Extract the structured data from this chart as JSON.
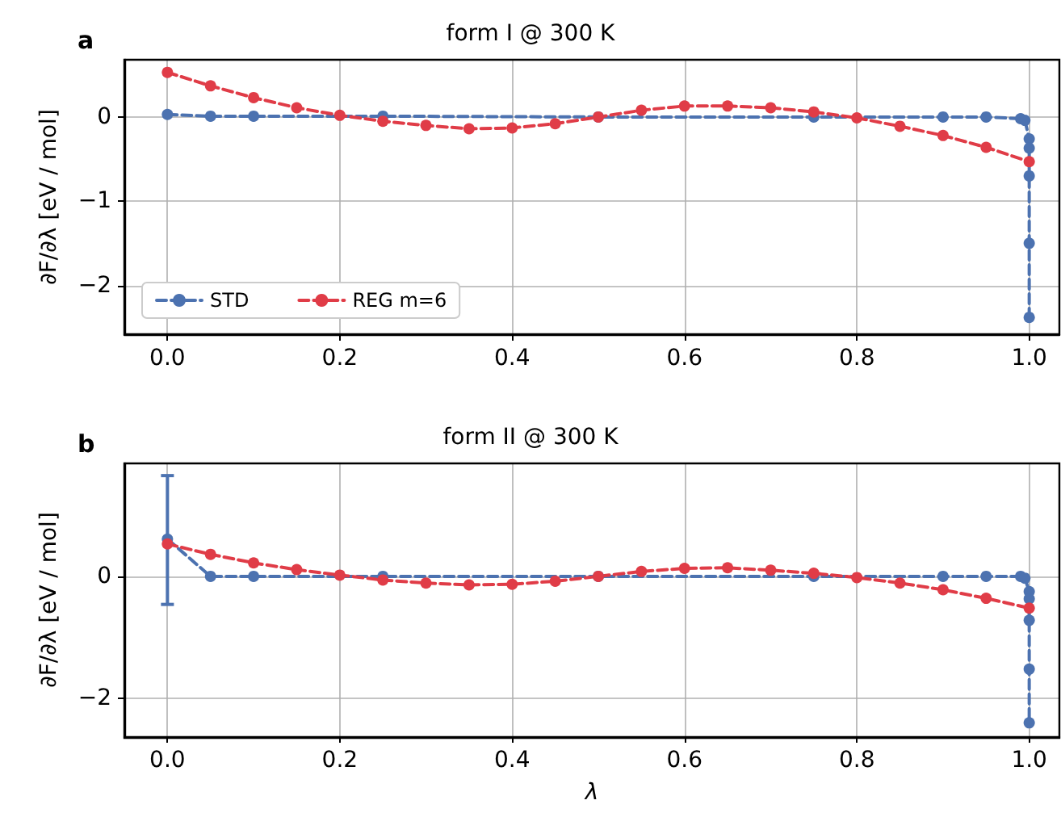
{
  "chart_data": [
    {
      "type": "line",
      "title": "form I @ 300 K",
      "ylabel": "∂F/∂λ [eV / mol]",
      "annotations": [
        "a"
      ],
      "xlim": [
        -0.05,
        1.035
      ],
      "ylim": [
        -2.58,
        0.68
      ],
      "xticks": [
        {
          "value": 0,
          "label": "0.0"
        },
        {
          "value": 0.2,
          "label": "0.2"
        },
        {
          "value": 0.4,
          "label": "0.4"
        },
        {
          "value": 0.6,
          "label": "0.6"
        },
        {
          "value": 0.8,
          "label": "0.8"
        },
        {
          "value": 1,
          "label": "1.0"
        }
      ],
      "yticks": [
        -2,
        -1,
        0
      ],
      "grid": true,
      "legend": "bottom left",
      "marker": "circle",
      "line_style": "dashed",
      "series": [
        {
          "name": "STD",
          "color": "#4c72b0",
          "x": [
            0,
            0.05,
            0.1,
            0.25,
            0.5,
            0.75,
            0.9,
            0.95,
            0.99,
            0.995,
            1,
            1,
            1,
            1,
            1
          ],
          "values": [
            0.03,
            0.01,
            0.01,
            0.01,
            0,
            0,
            0,
            0,
            -0.02,
            -0.04,
            -0.26,
            -0.37,
            -0.7,
            -1.5,
            -2.38
          ]
        },
        {
          "name": "REG m=6",
          "color": "#e03c47",
          "x": [
            0,
            0.05,
            0.1,
            0.15,
            0.2,
            0.25,
            0.3,
            0.35,
            0.4,
            0.45,
            0.5,
            0.55,
            0.6,
            0.65,
            0.7,
            0.75,
            0.8,
            0.85,
            0.9,
            0.95,
            1
          ],
          "values": [
            0.53,
            0.37,
            0.23,
            0.11,
            0.02,
            -0.05,
            -0.1,
            -0.14,
            -0.13,
            -0.08,
            0,
            0.08,
            0.13,
            0.13,
            0.11,
            0.06,
            -0.01,
            -0.11,
            -0.22,
            -0.36,
            -0.53
          ]
        }
      ]
    },
    {
      "type": "line",
      "title": "form II @ 300 K",
      "xlabel": "λ",
      "ylabel": "∂F/∂λ [eV / mol]",
      "annotations": [
        "b"
      ],
      "xlim": [
        -0.05,
        1.035
      ],
      "ylim": [
        -2.62,
        1.85
      ],
      "xticks": [
        {
          "value": 0,
          "label": "0.0"
        },
        {
          "value": 0.2,
          "label": "0.2"
        },
        {
          "value": 0.4,
          "label": "0.4"
        },
        {
          "value": 0.6,
          "label": "0.6"
        },
        {
          "value": 0.8,
          "label": "0.8"
        },
        {
          "value": 1,
          "label": "1.0"
        }
      ],
      "yticks": [
        -2,
        0
      ],
      "grid": true,
      "legend": false,
      "marker": "circle",
      "line_style": "dashed",
      "series": [
        {
          "color": "#4c72b0",
          "x": [
            0,
            0.05,
            0.1,
            0.25,
            0.5,
            0.75,
            0.9,
            0.95,
            0.99,
            0.995,
            1,
            1,
            1,
            1,
            1
          ],
          "values": [
            0.61,
            0,
            0,
            0,
            0,
            0,
            0,
            0,
            0,
            -0.03,
            -0.25,
            -0.37,
            -0.72,
            -1.52,
            -2.4
          ],
          "errors": [
            [
              -0.46,
              1.65
            ],
            null,
            null,
            null,
            null,
            null,
            null,
            null,
            null,
            null,
            null,
            null,
            null,
            null,
            null
          ]
        },
        {
          "color": "#e03c47",
          "x": [
            0,
            0.05,
            0.1,
            0.15,
            0.2,
            0.25,
            0.3,
            0.35,
            0.4,
            0.45,
            0.5,
            0.55,
            0.6,
            0.65,
            0.7,
            0.75,
            0.8,
            0.85,
            0.9,
            0.95,
            1
          ],
          "values": [
            0.53,
            0.36,
            0.22,
            0.11,
            0.02,
            -0.06,
            -0.11,
            -0.14,
            -0.13,
            -0.08,
            0,
            0.08,
            0.13,
            0.14,
            0.1,
            0.05,
            -0.02,
            -0.11,
            -0.22,
            -0.36,
            -0.52
          ]
        }
      ]
    }
  ]
}
